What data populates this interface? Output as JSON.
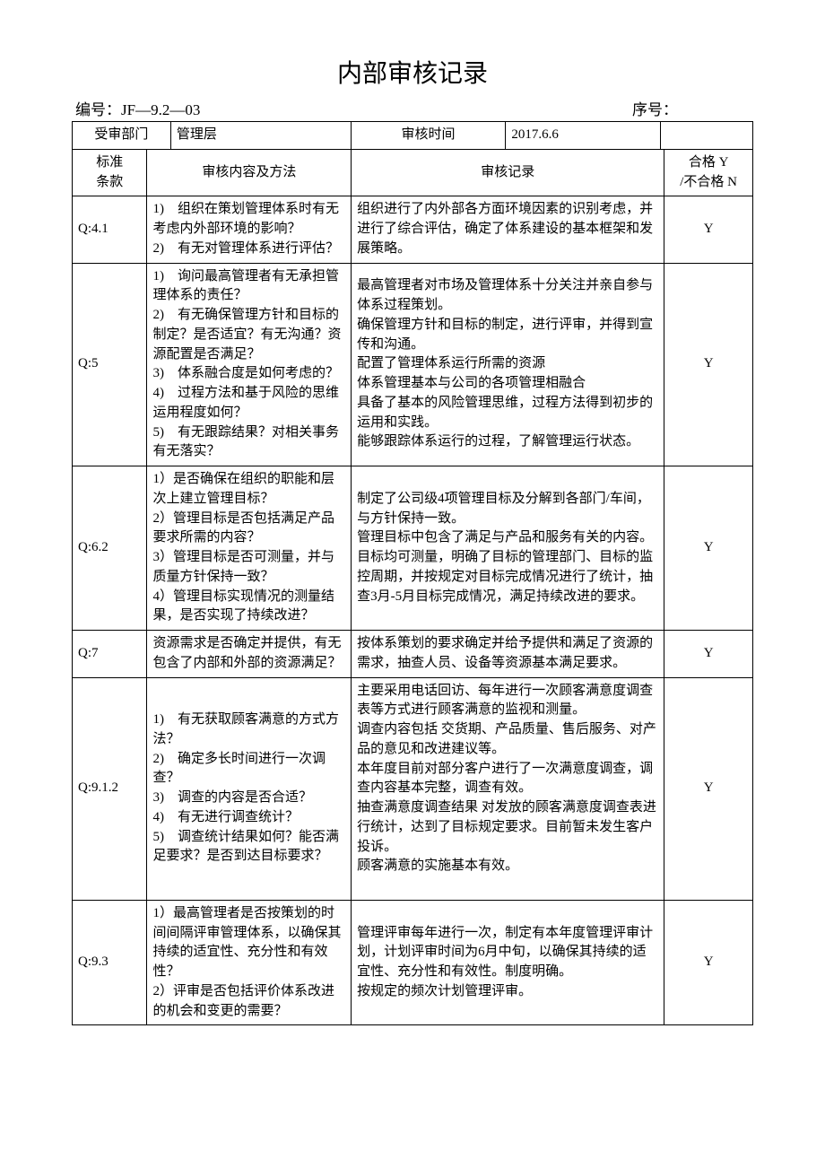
{
  "title": "内部审核记录",
  "doc_no_label": "编号：",
  "doc_no": "JF—9.2—03",
  "seq_label": "序号：",
  "seq": "",
  "header": {
    "dept_label": "受审部门",
    "dept_value": "管理层",
    "time_label": "审核时间",
    "time_value": "2017.6.6"
  },
  "columns": {
    "clause": "标准\n条款",
    "method": "审核内容及方法",
    "record": "审核记录",
    "result": "合格 Y\n/不合格 N"
  },
  "rows": [
    {
      "clause": "Q:4.1",
      "method": "1)　组织在策划管理体系时有无考虑内外部环境的影响？\n2)　有无对管理体系进行评估？",
      "record": "组织进行了内外部各方面环境因素的识别考虑，并进行了综合评估，确定了体系建设的基本框架和发展策略。",
      "result": "Y"
    },
    {
      "clause": "Q:5",
      "method": "1)　询问最高管理者有无承担管理体系的责任？\n2)　有无确保管理方针和目标的制定？是否适宜？有无沟通？资源配置是否满足？\n3)　体系融合度是如何考虑的？\n4)　过程方法和基于风险的思维运用程度如何？\n5)　有无跟踪结果？对相关事务有无落实？",
      "record": "最高管理者对市场及管理体系十分关注并亲自参与体系过程策划。\n确保管理方针和目标的制定，进行评审，并得到宣传和沟通。\n配置了管理体系运行所需的资源\n体系管理基本与公司的各项管理相融合\n具备了基本的风险管理思维，过程方法得到初步的运用和实践。\n能够跟踪体系运行的过程，了解管理运行状态。",
      "result": "Y"
    },
    {
      "clause": "Q:6.2",
      "method": "1）是否确保在组织的职能和层次上建立管理目标？\n2）管理目标是否包括满足产品要求所需的内容？\n3）管理目标是否可测量，并与质量方针保持一致？\n4）管理目标实现情况的测量结果，是否实现了持续改进？",
      "record": "制定了公司级4项管理目标及分解到各部门/车间，与方针保持一致。\n管理目标中包含了满足与产品和服务有关的内容。\n目标均可测量，明确了目标的管理部门、目标的监控周期，并按规定对目标完成情况进行了统计，抽查3月-5月目标完成情况，满足持续改进的要求。",
      "result": "Y"
    },
    {
      "clause": "Q:7",
      "method": "资源需求是否确定并提供，有无包含了内部和外部的资源满足？",
      "record": "按体系策划的要求确定并给予提供和满足了资源的需求，抽查人员、设备等资源基本满足要求。",
      "result": "Y"
    },
    {
      "clause": "Q:9.1.2",
      "method": "1)　有无获取顾客满意的方式方法？\n2)　确定多长时间进行一次调查？\n3)　调查的内容是否合适？\n4)　有无进行调查统计？\n5)　调查统计结果如何？能否满足要求？是否到达目标要求？",
      "record": "主要采用电话回访、每年进行一次顾客满意度调查表等方式进行顾客满意的监视和测量。\n调查内容包括 交货期、产品质量、售后服务、对产品的意见和改进建议等。\n本年度目前对部分客户进行了一次满意度调查，调查内容基本完整，调查有效。\n抽查满意度调查结果 对发放的顾客满意度调查表进行统计，达到了目标规定要求。目前暂未发生客户投诉。\n顾客满意的实施基本有效。\n\n",
      "result": "Y"
    },
    {
      "clause": "Q:9.3",
      "method": "1）最高管理者是否按策划的时间间隔评审管理体系，以确保其持续的适宜性、充分性和有效性？\n2）评审是否包括评价体系改进的机会和变更的需要？",
      "record": "管理评审每年进行一次，制定有本年度管理评审计划，计划评审时间为6月中旬，以确保其持续的适宜性、充分性和有效性。制度明确。\n按规定的频次计划管理评审。",
      "result": "Y"
    }
  ]
}
